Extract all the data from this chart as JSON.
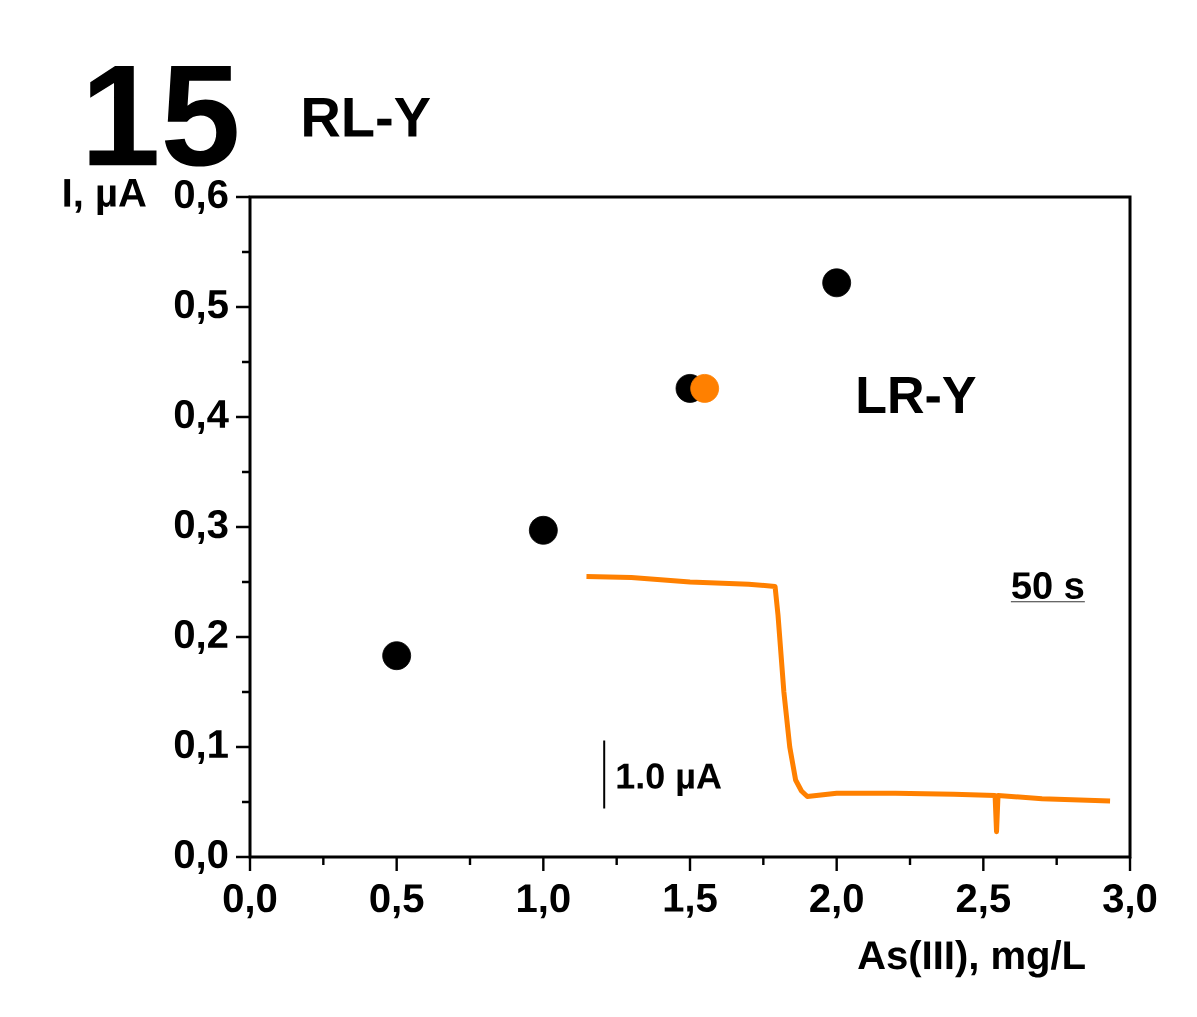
{
  "chart_data": {
    "type": "scatter",
    "title": "15",
    "subtitle": "RL-Y",
    "xlabel": "As(III), mg/L",
    "ylabel": "I, µA",
    "xlim": [
      0,
      3
    ],
    "ylim": [
      0,
      0.6
    ],
    "xticks": [
      {
        "value": 0,
        "label": "0,0"
      },
      {
        "value": 0.5,
        "label": "0,5"
      },
      {
        "value": 1,
        "label": "1,0"
      },
      {
        "value": 1.5,
        "label": "1,5"
      },
      {
        "value": 2,
        "label": "2,0"
      },
      {
        "value": 2.5,
        "label": "2,5"
      },
      {
        "value": 3,
        "label": "3,0"
      }
    ],
    "yticks": [
      {
        "value": 0,
        "label": "0,0"
      },
      {
        "value": 0.1,
        "label": "0,1"
      },
      {
        "value": 0.2,
        "label": "0,2"
      },
      {
        "value": 0.3,
        "label": "0,3"
      },
      {
        "value": 0.4,
        "label": "0,4"
      },
      {
        "value": 0.5,
        "label": "0,5"
      },
      {
        "value": 0.6,
        "label": "0,6"
      }
    ],
    "grid": false,
    "series": [
      {
        "marker": "circle",
        "color": "#000000",
        "x": [
          0.5,
          1.0,
          1.5,
          2.0
        ],
        "values": [
          0.183,
          0.297,
          0.426,
          0.522
        ]
      },
      {
        "marker": "circle",
        "color": "#ff8000",
        "x": [
          1.55
        ],
        "values": [
          0.426
        ]
      },
      {
        "type": "line",
        "marker": "none",
        "color": "#ff8000",
        "x": [
          1.147,
          1.3,
          1.5,
          1.7,
          1.79,
          1.8,
          1.82,
          1.84,
          1.86,
          1.88,
          1.9,
          2.0,
          2.2,
          2.4,
          2.54,
          2.545,
          2.55,
          2.7,
          2.932
        ],
        "values": [
          0.255,
          0.254,
          0.25,
          0.248,
          0.246,
          0.22,
          0.15,
          0.1,
          0.07,
          0.06,
          0.055,
          0.058,
          0.058,
          0.057,
          0.056,
          0.023,
          0.056,
          0.053,
          0.051
        ]
      }
    ],
    "annotations": [
      "LR-Y",
      "50 s",
      "1.0 µA"
    ]
  }
}
